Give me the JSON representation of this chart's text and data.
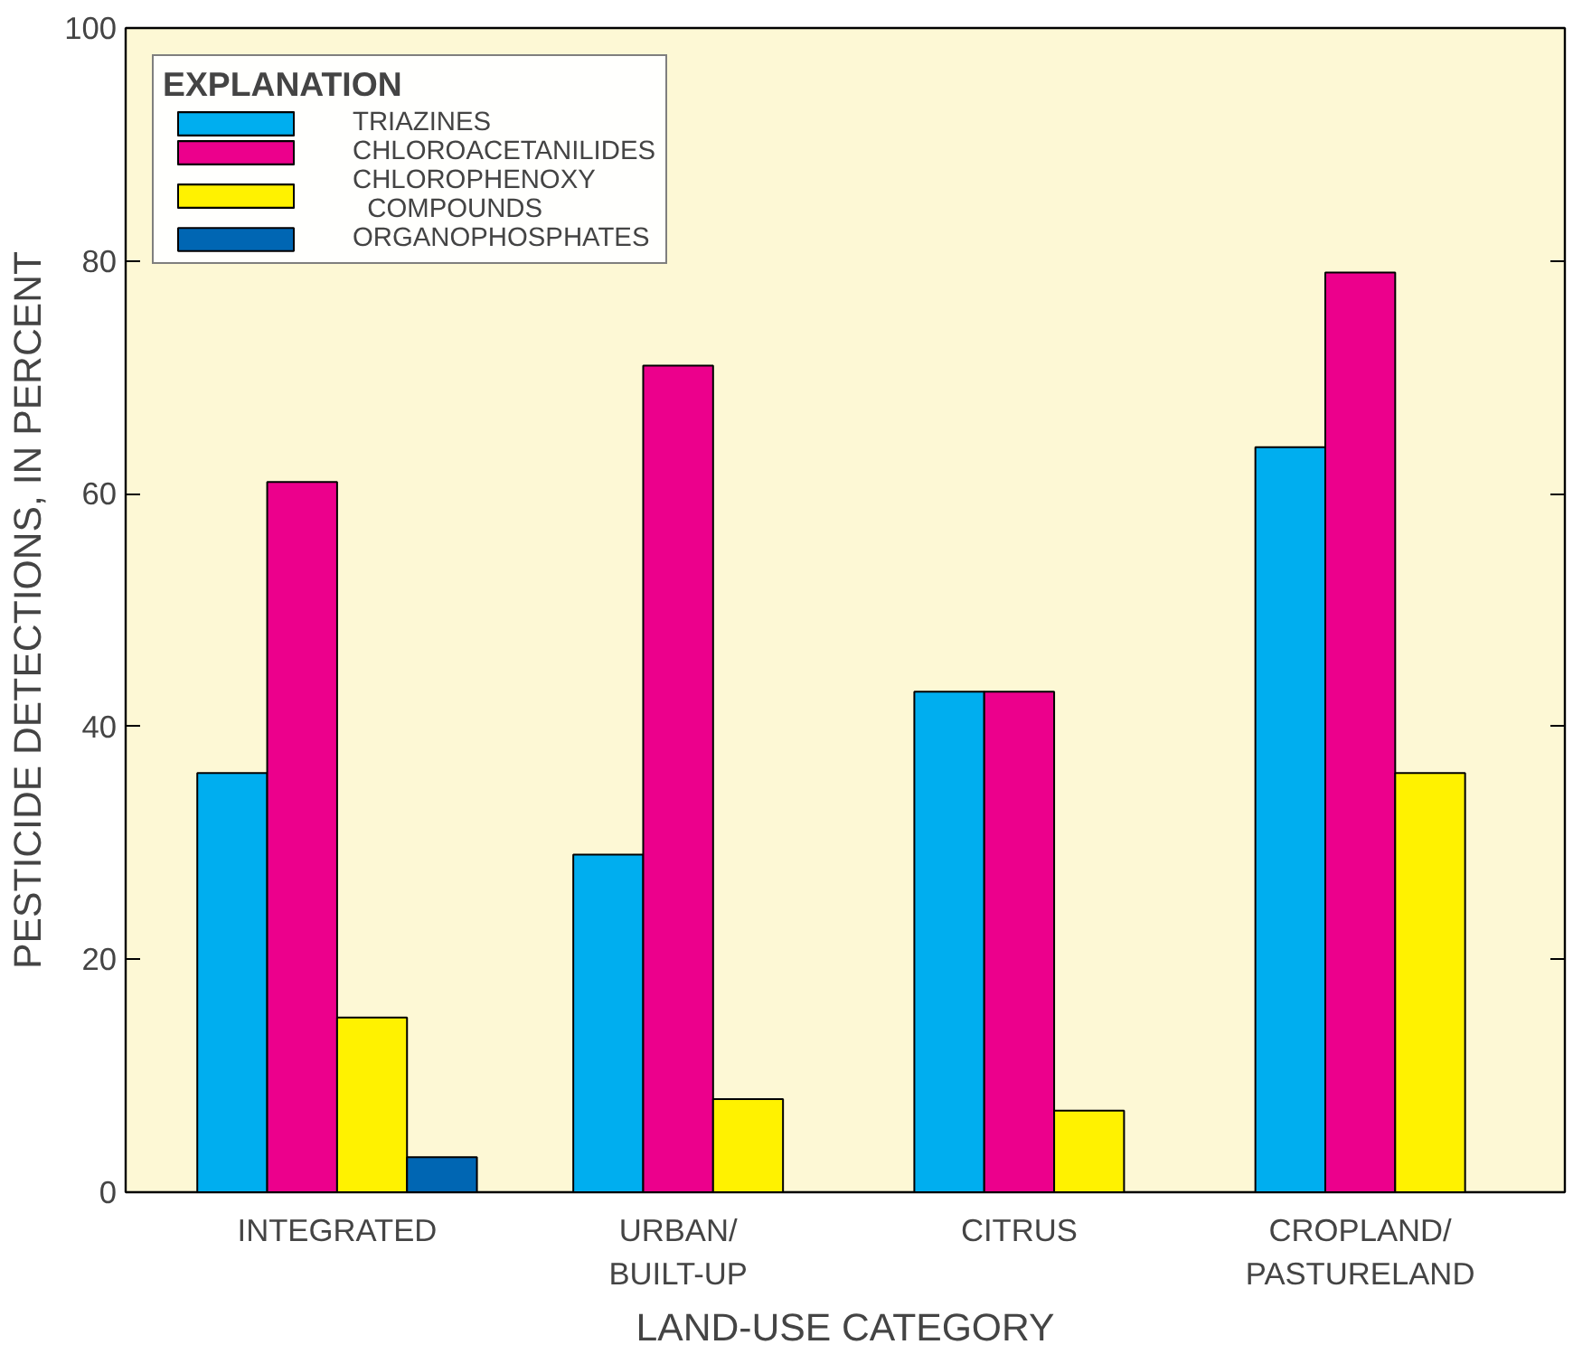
{
  "chart_data": {
    "type": "bar",
    "xlabel": "LAND-USE CATEGORY",
    "ylabel": "PESTICIDE DETECTIONS, IN PERCENT",
    "categories": [
      "INTEGRATED",
      "URBAN/\nBUILT-UP",
      "CITRUS",
      "CROPLAND/\nPASTURELAND"
    ],
    "series": [
      {
        "name": "TRIAZINES",
        "color": "#00aeef",
        "values": [
          36,
          29,
          43,
          64
        ]
      },
      {
        "name": "CHLOROACETANILIDES",
        "color": "#ec008c",
        "values": [
          61,
          71,
          43,
          79
        ]
      },
      {
        "name": "CHLOROPHENOXY\n  COMPOUNDS",
        "color": "#fff200",
        "values": [
          15,
          8,
          7,
          36
        ]
      },
      {
        "name": "ORGANOPHOSPHATES",
        "color": "#0066b3",
        "values": [
          3,
          null,
          null,
          null
        ]
      }
    ],
    "legend_title": "EXPLANATION",
    "legend": "top left",
    "ylim": [
      0,
      100
    ],
    "yticks": [
      0,
      20,
      40,
      60,
      80,
      100
    ],
    "grid": false
  }
}
